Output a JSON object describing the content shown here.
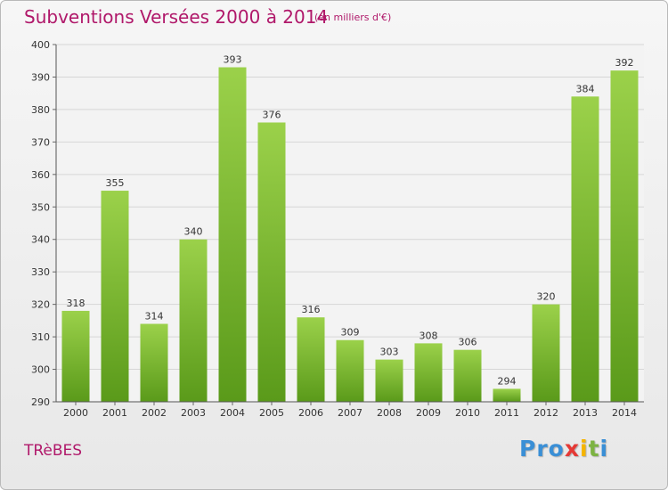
{
  "header": {
    "title": "Subventions Versées 2000 à 2014",
    "unit_note": "(en milliers d'€)"
  },
  "footer": {
    "commune": "TRèBES",
    "logo_letters": [
      "P",
      "r",
      "o",
      "x",
      "i",
      "t",
      "i"
    ],
    "logo_colors": [
      "#3a8fd6",
      "#3a8fd6",
      "#3a8fd6",
      "#e53935",
      "#f5b400",
      "#7cb342",
      "#3a8fd6"
    ]
  },
  "chart_data": {
    "type": "bar",
    "categories": [
      "2000",
      "2001",
      "2002",
      "2003",
      "2004",
      "2005",
      "2006",
      "2007",
      "2008",
      "2009",
      "2010",
      "2011",
      "2012",
      "2013",
      "2014"
    ],
    "values": [
      318,
      355,
      314,
      340,
      393,
      376,
      316,
      309,
      303,
      308,
      306,
      294,
      320,
      384,
      392
    ],
    "yticks": [
      290,
      300,
      310,
      320,
      330,
      340,
      350,
      360,
      370,
      380,
      390,
      400
    ],
    "ylim": [
      290,
      400
    ],
    "grid": true,
    "bar_color_light": "#9bd14a",
    "bar_color_dark": "#5a9a1a",
    "grid_color": "#d6d6d6"
  }
}
